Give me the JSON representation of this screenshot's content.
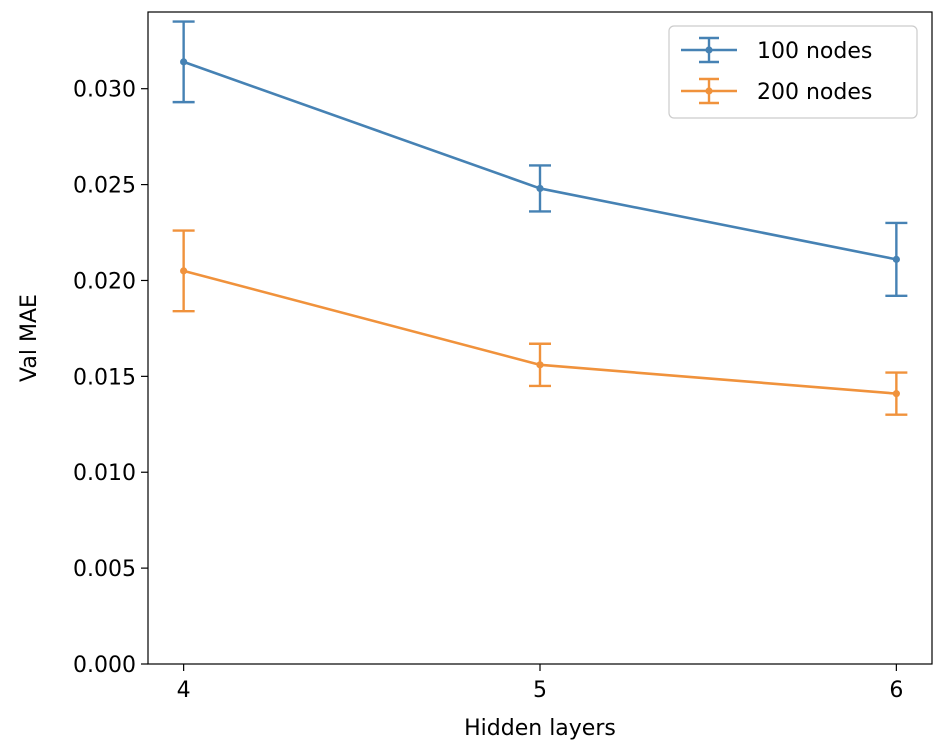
{
  "chart_data": {
    "type": "line",
    "title": "",
    "xlabel": "Hidden layers",
    "ylabel": "Val MAE",
    "x": [
      4,
      5,
      6
    ],
    "xticks": [
      "4",
      "5",
      "6"
    ],
    "yticks": [
      "0.000",
      "0.005",
      "0.010",
      "0.015",
      "0.020",
      "0.025",
      "0.030"
    ],
    "ylim": [
      0,
      0.034
    ],
    "legend_position": "top-right",
    "grid": false,
    "series": [
      {
        "name": "100 nodes",
        "color": "#4682b4",
        "values": [
          0.0314,
          0.0248,
          0.0211
        ],
        "errors": [
          0.0021,
          0.0012,
          0.0019
        ]
      },
      {
        "name": "200 nodes",
        "color": "#f0923c",
        "values": [
          0.0205,
          0.0156,
          0.0141
        ],
        "errors": [
          0.0021,
          0.0011,
          0.0011
        ]
      }
    ]
  }
}
